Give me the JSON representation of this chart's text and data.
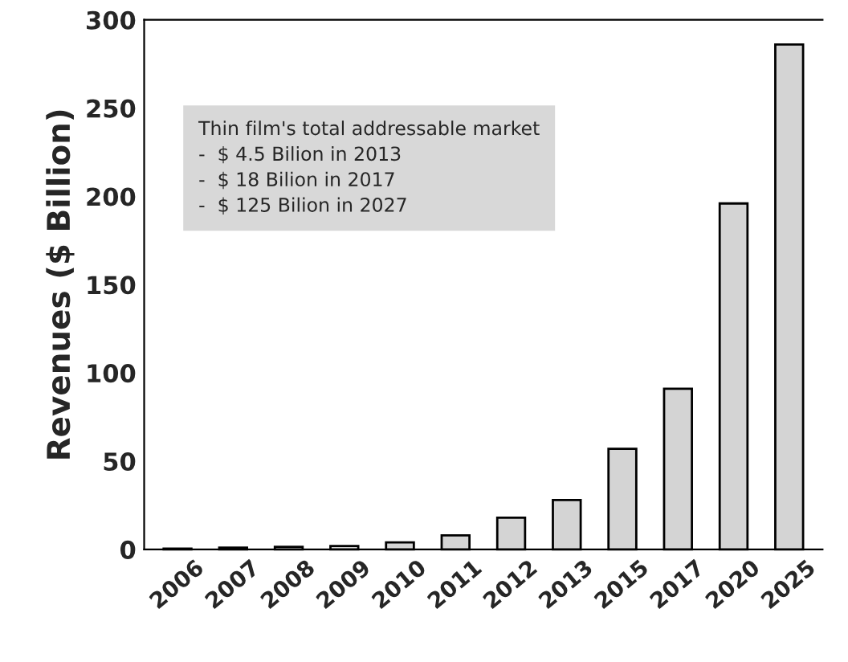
{
  "chart_data": {
    "type": "bar",
    "ylabel": "Revenues ($ Billion)",
    "categories": [
      "2006",
      "2007",
      "2008",
      "2009",
      "2010",
      "2011",
      "2012",
      "2013",
      "2015",
      "2017",
      "2020",
      "2025"
    ],
    "values": [
      0.5,
      1,
      1.5,
      2,
      4,
      8,
      18,
      28,
      57,
      91,
      196,
      286
    ],
    "color": "#d4d4d4",
    "ylim": [
      0,
      300
    ],
    "yticks": [
      0,
      50,
      100,
      150,
      200,
      250,
      300
    ],
    "annotations": [
      "Thin film's total addressable market\n-  $ 4.5 Bilion in 2013\n-  $ 18 Bilion in 2017\n-  $ 125 Bilion in 2027"
    ],
    "grid": false,
    "legend": false
  }
}
